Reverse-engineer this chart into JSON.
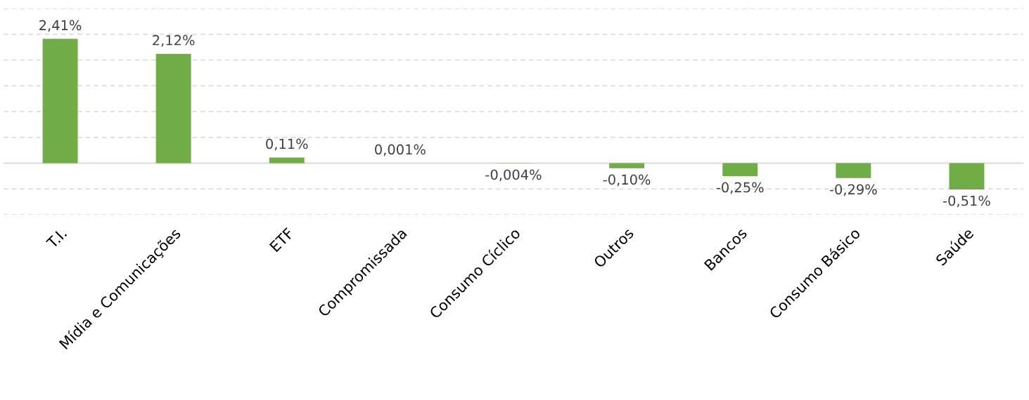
{
  "chart_data": {
    "type": "bar",
    "categories": [
      "T.I.",
      "Mídia e Comunicações",
      "ETF",
      "Compromissada",
      "Consumo Cíclico",
      "Outros",
      "Bancos",
      "Consumo Básico",
      "Saúde"
    ],
    "values": [
      2.41,
      2.12,
      0.11,
      0.001,
      -0.004,
      -0.1,
      -0.25,
      -0.29,
      -0.51
    ],
    "value_labels": [
      "2,41%",
      "2,12%",
      "0,11%",
      "0,001%",
      "-0,004%",
      "-0,10%",
      "-0,25%",
      "-0,29%",
      "-0,51%"
    ],
    "color": "#70ad47",
    "ylim": [
      -1.0,
      3.0
    ],
    "yticks": [
      {
        "value": -1.0,
        "label": null
      },
      {
        "value": -0.5,
        "label": null
      },
      {
        "value": 0.5,
        "label": null
      },
      {
        "value": 1.0,
        "label": null
      },
      {
        "value": 1.5,
        "label": null
      },
      {
        "value": 2.0,
        "label": null
      },
      {
        "value": 2.5,
        "label": null
      },
      {
        "value": 3.0,
        "label": null
      }
    ],
    "grid": "y",
    "tick_labels": "x",
    "ref_lines": [
      {
        "axis": "y",
        "value": 0,
        "label": null,
        "color": "#d9d9d9",
        "line_style": "solid"
      }
    ]
  }
}
